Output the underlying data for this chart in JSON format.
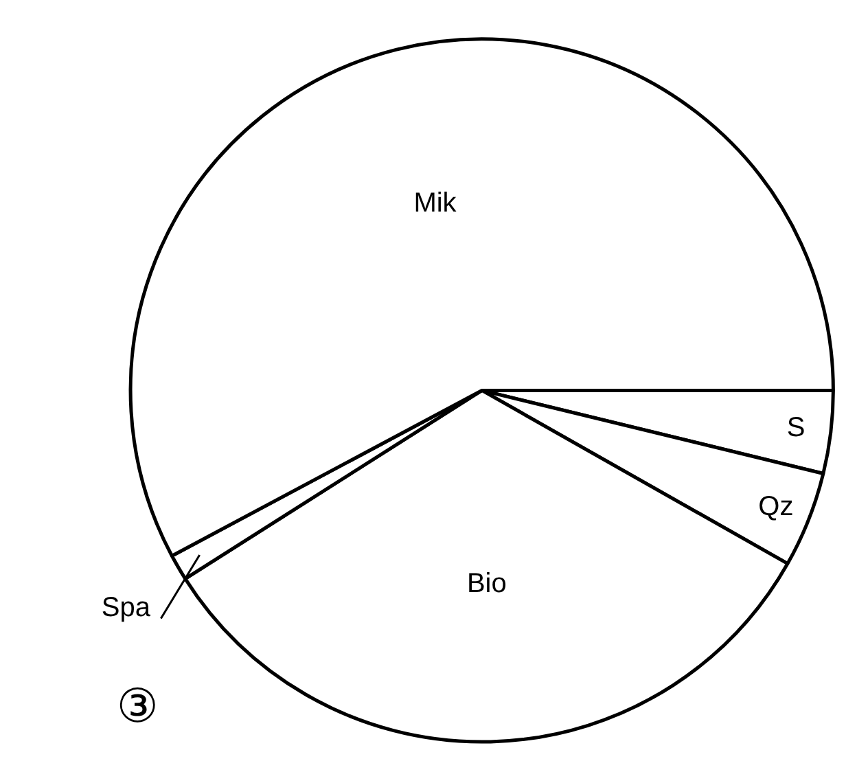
{
  "chart_data": {
    "type": "pie",
    "categories": [
      "S",
      "Qz",
      "Bio",
      "Spa",
      "Mik"
    ],
    "values": [
      3.8,
      4.4,
      32.8,
      1.2,
      57.8
    ],
    "colors": [
      "#ffffff",
      "#ffffff",
      "#ffffff",
      "#ffffff",
      "#ffffff"
    ],
    "annotations": [
      "③"
    ]
  }
}
